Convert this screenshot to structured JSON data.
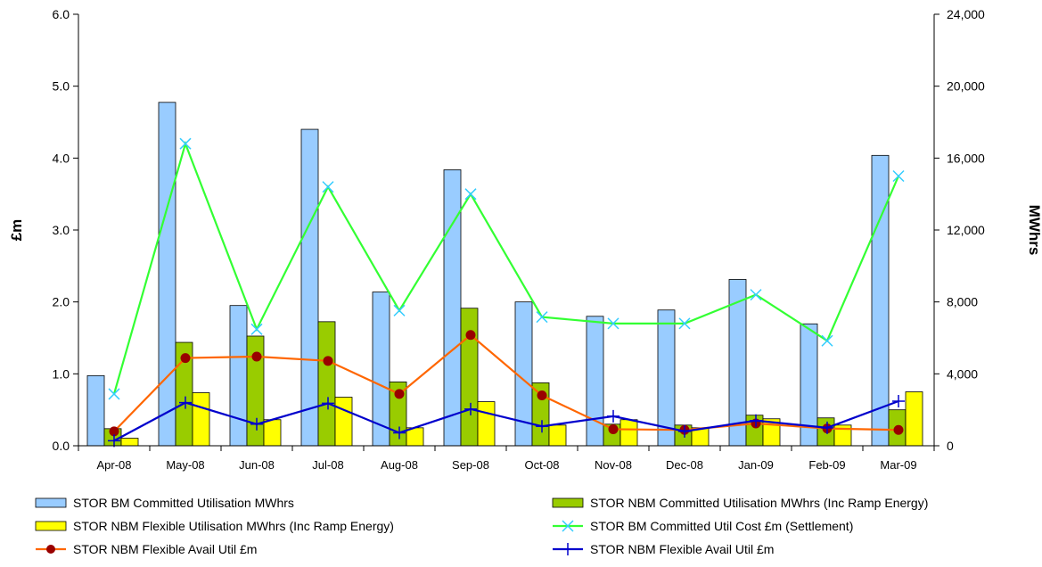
{
  "chart_data": {
    "type": "bar",
    "categories": [
      "Apr-08",
      "May-08",
      "Jun-08",
      "Jul-08",
      "Aug-08",
      "Sep-08",
      "Oct-08",
      "Nov-08",
      "Dec-08",
      "Jan-09",
      "Feb-09",
      "Mar-09"
    ],
    "y_left": {
      "label": "£m",
      "lim": [
        0,
        6.0
      ],
      "ticks": [
        "0.0",
        "1.0",
        "2.0",
        "3.0",
        "4.0",
        "5.0",
        "6.0"
      ]
    },
    "y_right": {
      "label": "MWhrs",
      "lim": [
        0,
        24000
      ],
      "ticks": [
        "0",
        "4,000",
        "8,000",
        "12,000",
        "16,000",
        "20,000",
        "24,000"
      ]
    },
    "grid": false,
    "legend_position": "bottom",
    "series": [
      {
        "name": "STOR BM  Committed Utilisation MWhrs",
        "type": "bar",
        "axis": "right",
        "color": "#99ccff",
        "values": [
          3900,
          19100,
          7800,
          17600,
          8550,
          15350,
          8000,
          7200,
          7550,
          9250,
          6780,
          16150
        ]
      },
      {
        "name": "STOR NBM Committed Utilisation MWhrs (Inc Ramp Energy)",
        "type": "bar",
        "axis": "right",
        "color": "#99cc00",
        "values": [
          950,
          5750,
          6100,
          6900,
          3550,
          7650,
          3500,
          1200,
          1150,
          1700,
          1550,
          2000
        ]
      },
      {
        "name": "STOR NBM Flexible Utilisation MWhrs (Inc Ramp Energy)",
        "type": "bar",
        "axis": "right",
        "color": "#ffff00",
        "values": [
          420,
          2950,
          1450,
          2700,
          1000,
          2450,
          1150,
          1450,
          1000,
          1500,
          1150,
          3000
        ]
      },
      {
        "name": "STOR BM  Committed Util Cost £m (Settlement)",
        "type": "line",
        "axis": "left",
        "color": "#33ff33",
        "marker": "x",
        "values": [
          0.72,
          4.2,
          1.62,
          3.6,
          1.88,
          3.5,
          1.79,
          1.7,
          1.7,
          2.1,
          1.46,
          3.75
        ]
      },
      {
        "name": "STOR NBM Flexible Avail Util  £m",
        "type": "line",
        "axis": "left",
        "color": "#ff6600",
        "marker": "circle",
        "values": [
          0.2,
          1.22,
          1.24,
          1.18,
          0.72,
          1.54,
          0.7,
          0.23,
          0.22,
          0.31,
          0.24,
          0.22
        ]
      },
      {
        "name": "STOR NBM Flexible Avail Util  £m",
        "type": "line",
        "axis": "left",
        "color": "#0000cc",
        "marker": "plus",
        "values": [
          0.07,
          0.6,
          0.3,
          0.59,
          0.18,
          0.51,
          0.27,
          0.41,
          0.2,
          0.35,
          0.25,
          0.62
        ]
      }
    ]
  }
}
